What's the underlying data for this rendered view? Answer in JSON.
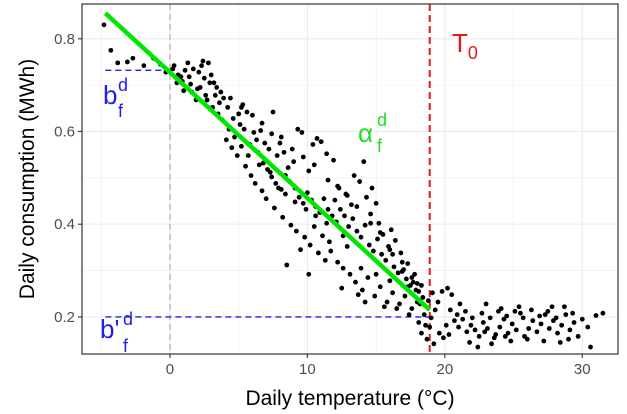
{
  "chart_data": {
    "type": "scatter",
    "xlabel": "Daily temperature (°C)",
    "ylabel": "Daily consumption (MWh)",
    "xlim": [
      -6.4,
      32.6
    ],
    "ylim": [
      0.12,
      0.875
    ],
    "x_ticks": [
      0,
      10,
      20,
      30
    ],
    "y_ticks": [
      0.2,
      0.4,
      0.6,
      0.8
    ],
    "x_tick_labels": [
      "0",
      "10",
      "20",
      "30"
    ],
    "y_tick_labels": [
      "0.2",
      "0.4",
      "0.6",
      "0.8"
    ],
    "grid": true,
    "legend": "none",
    "colors": {
      "points": "#000000",
      "fit_line": "#00e600",
      "threshold": "#e41a1c",
      "baseline": "#1f1fe6",
      "zero_line": "#b3b3b3",
      "grid": "#ebebeb",
      "panel_border": "#333333"
    },
    "fit_line": {
      "x": [
        -4.7,
        18.9
      ],
      "y": [
        0.855,
        0.215
      ]
    },
    "vertical_lines": [
      {
        "name": "zero",
        "x": 0,
        "style": "dashed"
      },
      {
        "name": "threshold",
        "x": 18.9,
        "style": "dashed"
      }
    ],
    "horizontal_lines": [
      {
        "name": "b_f_d",
        "y": 0.732,
        "x": [
          -4.7,
          0
        ]
      },
      {
        "name": "b_prime_f_d",
        "y": 0.2,
        "x": [
          -4.7,
          18.9
        ]
      }
    ],
    "annotations": {
      "T0": {
        "base": "T",
        "sub": "0"
      },
      "alpha": {
        "base": "α",
        "sup": "d",
        "sub": "f"
      },
      "b_f_d": {
        "base": "b",
        "sup": "d",
        "sub": "f"
      },
      "b_prime_f_d": {
        "base": "b'",
        "sup": "d",
        "sub": "f"
      }
    },
    "series": [
      {
        "points": [
          [
            -4.8,
            0.83
          ],
          [
            -4.3,
            0.775
          ],
          [
            -3.8,
            0.748
          ],
          [
            -3.1,
            0.75
          ],
          [
            -2.7,
            0.758
          ],
          [
            -1.9,
            0.742
          ],
          [
            -1.2,
            0.758
          ],
          [
            -0.7,
            0.745
          ],
          [
            -0.3,
            0.728
          ],
          [
            0.3,
            0.742
          ],
          [
            0.6,
            0.722
          ],
          [
            0.9,
            0.708
          ],
          [
            1.1,
            0.732
          ],
          [
            1.4,
            0.718
          ],
          [
            1.7,
            0.735
          ],
          [
            2.1,
            0.728
          ],
          [
            2.3,
            0.742
          ],
          [
            2.4,
            0.752
          ],
          [
            2.8,
            0.748
          ],
          [
            3.0,
            0.722
          ],
          [
            3.2,
            0.705
          ],
          [
            3.4,
            0.695
          ],
          [
            0.5,
            0.705
          ],
          [
            1.0,
            0.688
          ],
          [
            1.6,
            0.685
          ],
          [
            1.9,
            0.668
          ],
          [
            2.2,
            0.695
          ],
          [
            2.6,
            0.678
          ],
          [
            2.9,
            0.705
          ],
          [
            3.3,
            0.678
          ],
          [
            3.6,
            0.662
          ],
          [
            3.9,
            0.672
          ],
          [
            4.2,
            0.652
          ],
          [
            4.6,
            0.628
          ],
          [
            5.0,
            0.638
          ],
          [
            5.3,
            0.658
          ],
          [
            5.6,
            0.642
          ],
          [
            6.1,
            0.598
          ],
          [
            6.3,
            0.582
          ],
          [
            6.6,
            0.602
          ],
          [
            6.9,
            0.575
          ],
          [
            7.2,
            0.562
          ],
          [
            7.5,
            0.642
          ],
          [
            7.8,
            0.548
          ],
          [
            8.0,
            0.575
          ],
          [
            8.3,
            0.555
          ],
          [
            8.6,
            0.522
          ],
          [
            9.0,
            0.535
          ],
          [
            9.3,
            0.605
          ],
          [
            9.6,
            0.598
          ],
          [
            10.1,
            0.515
          ],
          [
            10.4,
            0.572
          ],
          [
            10.7,
            0.585
          ],
          [
            11.0,
            0.578
          ],
          [
            11.4,
            0.552
          ],
          [
            11.9,
            0.538
          ],
          [
            5.1,
            0.615
          ],
          [
            5.4,
            0.605
          ],
          [
            5.8,
            0.572
          ],
          [
            6.4,
            0.555
          ],
          [
            6.8,
            0.532
          ],
          [
            7.1,
            0.518
          ],
          [
            7.4,
            0.502
          ],
          [
            7.7,
            0.488
          ],
          [
            8.1,
            0.475
          ],
          [
            8.4,
            0.505
          ],
          [
            8.7,
            0.492
          ],
          [
            9.1,
            0.478
          ],
          [
            9.4,
            0.458
          ],
          [
            9.7,
            0.445
          ],
          [
            10.0,
            0.468
          ],
          [
            10.3,
            0.452
          ],
          [
            10.6,
            0.438
          ],
          [
            10.9,
            0.425
          ],
          [
            11.2,
            0.455
          ],
          [
            11.5,
            0.432
          ],
          [
            11.8,
            0.418
          ],
          [
            12.1,
            0.405
          ],
          [
            12.4,
            0.432
          ],
          [
            12.7,
            0.418
          ],
          [
            13.0,
            0.395
          ],
          [
            13.3,
            0.412
          ],
          [
            13.6,
            0.385
          ],
          [
            13.9,
            0.372
          ],
          [
            14.2,
            0.398
          ],
          [
            14.5,
            0.355
          ],
          [
            14.8,
            0.342
          ],
          [
            15.1,
            0.368
          ],
          [
            15.4,
            0.335
          ],
          [
            15.7,
            0.322
          ],
          [
            16.0,
            0.345
          ],
          [
            16.3,
            0.308
          ],
          [
            16.6,
            0.295
          ],
          [
            16.9,
            0.318
          ],
          [
            17.2,
            0.282
          ],
          [
            17.5,
            0.268
          ],
          [
            17.8,
            0.292
          ],
          [
            18.1,
            0.255
          ],
          [
            18.4,
            0.242
          ],
          [
            4.1,
            0.582
          ],
          [
            4.5,
            0.565
          ],
          [
            4.9,
            0.548
          ],
          [
            5.5,
            0.525
          ],
          [
            5.9,
            0.505
          ],
          [
            6.2,
            0.488
          ],
          [
            6.7,
            0.472
          ],
          [
            7.0,
            0.455
          ],
          [
            7.6,
            0.435
          ],
          [
            8.2,
            0.415
          ],
          [
            8.8,
            0.398
          ],
          [
            9.2,
            0.385
          ],
          [
            9.8,
            0.372
          ],
          [
            10.2,
            0.355
          ],
          [
            10.8,
            0.338
          ],
          [
            11.3,
            0.322
          ],
          [
            11.7,
            0.342
          ],
          [
            12.2,
            0.318
          ],
          [
            12.6,
            0.305
          ],
          [
            13.1,
            0.292
          ],
          [
            13.5,
            0.275
          ],
          [
            14.0,
            0.258
          ],
          [
            14.4,
            0.285
          ],
          [
            14.9,
            0.245
          ],
          [
            15.3,
            0.265
          ],
          [
            15.8,
            0.232
          ],
          [
            16.2,
            0.252
          ],
          [
            16.7,
            0.228
          ],
          [
            17.1,
            0.245
          ],
          [
            17.6,
            0.218
          ],
          [
            18.0,
            0.232
          ],
          [
            18.5,
            0.205
          ],
          [
            8.5,
            0.312
          ],
          [
            9.5,
            0.345
          ],
          [
            10.5,
            0.395
          ],
          [
            11.1,
            0.375
          ],
          [
            11.6,
            0.362
          ],
          [
            12.0,
            0.452
          ],
          [
            12.3,
            0.478
          ],
          [
            12.8,
            0.465
          ],
          [
            13.2,
            0.442
          ],
          [
            13.4,
            0.505
          ],
          [
            13.8,
            0.492
          ],
          [
            14.1,
            0.535
          ],
          [
            14.3,
            0.458
          ],
          [
            14.6,
            0.422
          ],
          [
            14.7,
            0.478
          ],
          [
            15.0,
            0.445
          ],
          [
            15.2,
            0.402
          ],
          [
            15.5,
            0.378
          ],
          [
            15.9,
            0.352
          ],
          [
            16.1,
            0.388
          ],
          [
            16.4,
            0.365
          ],
          [
            16.8,
            0.338
          ],
          [
            17.0,
            0.302
          ],
          [
            17.3,
            0.315
          ],
          [
            17.7,
            0.275
          ],
          [
            17.9,
            0.258
          ],
          [
            18.2,
            0.228
          ],
          [
            18.6,
            0.182
          ],
          [
            18.3,
            0.165
          ],
          [
            18.7,
            0.152
          ],
          [
            18.9,
            0.178
          ],
          [
            19.0,
            0.198
          ],
          [
            19.2,
            0.142
          ],
          [
            18.1,
            0.188
          ],
          [
            17.4,
            0.205
          ],
          [
            16.5,
            0.218
          ],
          [
            15.6,
            0.222
          ],
          [
            14.2,
            0.232
          ],
          [
            13.7,
            0.248
          ],
          [
            10.1,
            0.292
          ],
          [
            12.5,
            0.262
          ],
          [
            19.3,
            0.215
          ],
          [
            19.5,
            0.232
          ],
          [
            19.8,
            0.255
          ],
          [
            20.2,
            0.262
          ],
          [
            20.4,
            0.215
          ],
          [
            20.7,
            0.192
          ],
          [
            21.0,
            0.178
          ],
          [
            21.3,
            0.195
          ],
          [
            21.6,
            0.168
          ],
          [
            21.9,
            0.182
          ],
          [
            22.2,
            0.172
          ],
          [
            22.5,
            0.158
          ],
          [
            22.8,
            0.188
          ],
          [
            23.1,
            0.175
          ],
          [
            23.4,
            0.142
          ],
          [
            23.7,
            0.162
          ],
          [
            24.0,
            0.178
          ],
          [
            24.3,
            0.195
          ],
          [
            24.6,
            0.165
          ],
          [
            24.9,
            0.185
          ],
          [
            25.2,
            0.172
          ],
          [
            25.5,
            0.208
          ],
          [
            25.8,
            0.158
          ],
          [
            26.1,
            0.175
          ],
          [
            26.4,
            0.192
          ],
          [
            26.7,
            0.168
          ],
          [
            27.0,
            0.185
          ],
          [
            27.3,
            0.205
          ],
          [
            27.6,
            0.175
          ],
          [
            27.9,
            0.192
          ],
          [
            28.2,
            0.165
          ],
          [
            28.5,
            0.182
          ],
          [
            28.8,
            0.205
          ],
          [
            29.1,
            0.172
          ],
          [
            29.4,
            0.188
          ],
          [
            29.7,
            0.158
          ],
          [
            30.0,
            0.195
          ],
          [
            30.4,
            0.178
          ],
          [
            31.0,
            0.203
          ],
          [
            31.5,
            0.208
          ],
          [
            30.6,
            0.135
          ],
          [
            20.1,
            0.182
          ],
          [
            20.9,
            0.205
          ],
          [
            21.5,
            0.212
          ],
          [
            22.0,
            0.198
          ],
          [
            22.7,
            0.208
          ],
          [
            23.3,
            0.198
          ],
          [
            23.9,
            0.212
          ],
          [
            24.5,
            0.202
          ],
          [
            25.1,
            0.212
          ],
          [
            25.7,
            0.198
          ],
          [
            26.3,
            0.215
          ],
          [
            26.9,
            0.202
          ],
          [
            27.5,
            0.212
          ],
          [
            28.1,
            0.198
          ],
          [
            28.7,
            0.222
          ],
          [
            29.3,
            0.208
          ],
          [
            22.4,
            0.135
          ],
          [
            23.6,
            0.155
          ],
          [
            24.8,
            0.148
          ],
          [
            26.0,
            0.152
          ],
          [
            27.2,
            0.148
          ],
          [
            28.4,
            0.145
          ],
          [
            29.0,
            0.152
          ],
          [
            23.0,
            0.228
          ],
          [
            24.1,
            0.218
          ],
          [
            25.4,
            0.222
          ],
          [
            27.8,
            0.222
          ],
          [
            20.5,
            0.248
          ],
          [
            21.1,
            0.228
          ],
          [
            19.6,
            0.165
          ],
          [
            19.9,
            0.155
          ],
          [
            21.8,
            0.145
          ],
          [
            20.3,
            0.162
          ],
          [
            22.9,
            0.168
          ],
          [
            24.4,
            0.158
          ],
          [
            18.8,
            0.235
          ],
          [
            19.1,
            0.252
          ],
          [
            18.0,
            0.272
          ],
          [
            17.3,
            0.265
          ],
          [
            16.0,
            0.278
          ],
          [
            15.0,
            0.292
          ],
          [
            13.9,
            0.305
          ],
          [
            12.9,
            0.352
          ],
          [
            12.6,
            0.375
          ],
          [
            11.4,
            0.402
          ],
          [
            10.6,
            0.418
          ],
          [
            9.9,
            0.432
          ],
          [
            9.1,
            0.448
          ],
          [
            8.4,
            0.465
          ],
          [
            7.9,
            0.478
          ],
          [
            7.3,
            0.512
          ],
          [
            6.5,
            0.528
          ],
          [
            5.7,
            0.548
          ],
          [
            5.2,
            0.568
          ],
          [
            4.7,
            0.588
          ],
          [
            4.3,
            0.605
          ],
          [
            3.8,
            0.625
          ],
          [
            3.5,
            0.638
          ],
          [
            3.1,
            0.652
          ],
          [
            2.7,
            0.668
          ],
          [
            2.0,
            0.692
          ],
          [
            1.5,
            0.702
          ],
          [
            0.8,
            0.718
          ],
          [
            0.2,
            0.735
          ],
          [
            1.3,
            0.748
          ],
          [
            2.5,
            0.715
          ],
          [
            3.7,
            0.685
          ],
          [
            4.4,
            0.672
          ],
          [
            5.2,
            0.652
          ],
          [
            6.0,
            0.635
          ],
          [
            6.7,
            0.618
          ],
          [
            7.4,
            0.595
          ],
          [
            8.1,
            0.588
          ],
          [
            8.9,
            0.562
          ],
          [
            9.7,
            0.545
          ],
          [
            10.5,
            0.528
          ],
          [
            11.5,
            0.495
          ],
          [
            12.2,
            0.482
          ],
          [
            12.9,
            0.462
          ],
          [
            13.6,
            0.438
          ],
          [
            14.6,
            0.402
          ],
          [
            15.3,
            0.382
          ],
          [
            16.2,
            0.335
          ],
          [
            16.9,
            0.298
          ],
          [
            17.6,
            0.285
          ],
          [
            18.3,
            0.268
          ]
        ]
      }
    ]
  }
}
